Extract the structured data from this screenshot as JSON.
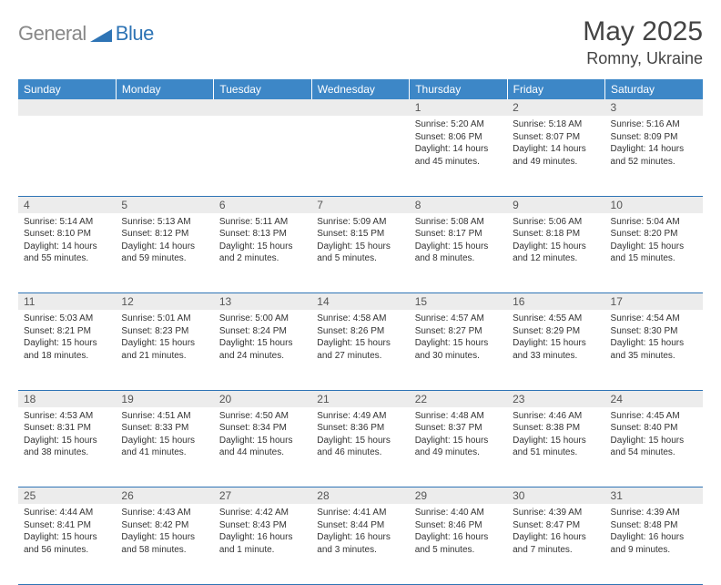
{
  "branding": {
    "word1": "General",
    "word2": "Blue",
    "word1_color": "#888888",
    "word2_color": "#2e74b5",
    "mark_color": "#2e74b5"
  },
  "title": "May 2025",
  "location": "Romny, Ukraine",
  "colors": {
    "header_bg": "#3d87c7",
    "header_text": "#ffffff",
    "daynum_bg": "#ececec",
    "daynum_text": "#555555",
    "border": "#2e74b5",
    "body_text": "#333333",
    "page_bg": "#ffffff"
  },
  "fonts": {
    "title_size": 30,
    "location_size": 18,
    "dayheader_size": 12,
    "daynum_size": 12,
    "cell_size": 10
  },
  "day_headers": [
    "Sunday",
    "Monday",
    "Tuesday",
    "Wednesday",
    "Thursday",
    "Friday",
    "Saturday"
  ],
  "weeks": [
    [
      null,
      null,
      null,
      null,
      {
        "n": "1",
        "sunrise": "Sunrise: 5:20 AM",
        "sunset": "Sunset: 8:06 PM",
        "daylight": "Daylight: 14 hours and 45 minutes."
      },
      {
        "n": "2",
        "sunrise": "Sunrise: 5:18 AM",
        "sunset": "Sunset: 8:07 PM",
        "daylight": "Daylight: 14 hours and 49 minutes."
      },
      {
        "n": "3",
        "sunrise": "Sunrise: 5:16 AM",
        "sunset": "Sunset: 8:09 PM",
        "daylight": "Daylight: 14 hours and 52 minutes."
      }
    ],
    [
      {
        "n": "4",
        "sunrise": "Sunrise: 5:14 AM",
        "sunset": "Sunset: 8:10 PM",
        "daylight": "Daylight: 14 hours and 55 minutes."
      },
      {
        "n": "5",
        "sunrise": "Sunrise: 5:13 AM",
        "sunset": "Sunset: 8:12 PM",
        "daylight": "Daylight: 14 hours and 59 minutes."
      },
      {
        "n": "6",
        "sunrise": "Sunrise: 5:11 AM",
        "sunset": "Sunset: 8:13 PM",
        "daylight": "Daylight: 15 hours and 2 minutes."
      },
      {
        "n": "7",
        "sunrise": "Sunrise: 5:09 AM",
        "sunset": "Sunset: 8:15 PM",
        "daylight": "Daylight: 15 hours and 5 minutes."
      },
      {
        "n": "8",
        "sunrise": "Sunrise: 5:08 AM",
        "sunset": "Sunset: 8:17 PM",
        "daylight": "Daylight: 15 hours and 8 minutes."
      },
      {
        "n": "9",
        "sunrise": "Sunrise: 5:06 AM",
        "sunset": "Sunset: 8:18 PM",
        "daylight": "Daylight: 15 hours and 12 minutes."
      },
      {
        "n": "10",
        "sunrise": "Sunrise: 5:04 AM",
        "sunset": "Sunset: 8:20 PM",
        "daylight": "Daylight: 15 hours and 15 minutes."
      }
    ],
    [
      {
        "n": "11",
        "sunrise": "Sunrise: 5:03 AM",
        "sunset": "Sunset: 8:21 PM",
        "daylight": "Daylight: 15 hours and 18 minutes."
      },
      {
        "n": "12",
        "sunrise": "Sunrise: 5:01 AM",
        "sunset": "Sunset: 8:23 PM",
        "daylight": "Daylight: 15 hours and 21 minutes."
      },
      {
        "n": "13",
        "sunrise": "Sunrise: 5:00 AM",
        "sunset": "Sunset: 8:24 PM",
        "daylight": "Daylight: 15 hours and 24 minutes."
      },
      {
        "n": "14",
        "sunrise": "Sunrise: 4:58 AM",
        "sunset": "Sunset: 8:26 PM",
        "daylight": "Daylight: 15 hours and 27 minutes."
      },
      {
        "n": "15",
        "sunrise": "Sunrise: 4:57 AM",
        "sunset": "Sunset: 8:27 PM",
        "daylight": "Daylight: 15 hours and 30 minutes."
      },
      {
        "n": "16",
        "sunrise": "Sunrise: 4:55 AM",
        "sunset": "Sunset: 8:29 PM",
        "daylight": "Daylight: 15 hours and 33 minutes."
      },
      {
        "n": "17",
        "sunrise": "Sunrise: 4:54 AM",
        "sunset": "Sunset: 8:30 PM",
        "daylight": "Daylight: 15 hours and 35 minutes."
      }
    ],
    [
      {
        "n": "18",
        "sunrise": "Sunrise: 4:53 AM",
        "sunset": "Sunset: 8:31 PM",
        "daylight": "Daylight: 15 hours and 38 minutes."
      },
      {
        "n": "19",
        "sunrise": "Sunrise: 4:51 AM",
        "sunset": "Sunset: 8:33 PM",
        "daylight": "Daylight: 15 hours and 41 minutes."
      },
      {
        "n": "20",
        "sunrise": "Sunrise: 4:50 AM",
        "sunset": "Sunset: 8:34 PM",
        "daylight": "Daylight: 15 hours and 44 minutes."
      },
      {
        "n": "21",
        "sunrise": "Sunrise: 4:49 AM",
        "sunset": "Sunset: 8:36 PM",
        "daylight": "Daylight: 15 hours and 46 minutes."
      },
      {
        "n": "22",
        "sunrise": "Sunrise: 4:48 AM",
        "sunset": "Sunset: 8:37 PM",
        "daylight": "Daylight: 15 hours and 49 minutes."
      },
      {
        "n": "23",
        "sunrise": "Sunrise: 4:46 AM",
        "sunset": "Sunset: 8:38 PM",
        "daylight": "Daylight: 15 hours and 51 minutes."
      },
      {
        "n": "24",
        "sunrise": "Sunrise: 4:45 AM",
        "sunset": "Sunset: 8:40 PM",
        "daylight": "Daylight: 15 hours and 54 minutes."
      }
    ],
    [
      {
        "n": "25",
        "sunrise": "Sunrise: 4:44 AM",
        "sunset": "Sunset: 8:41 PM",
        "daylight": "Daylight: 15 hours and 56 minutes."
      },
      {
        "n": "26",
        "sunrise": "Sunrise: 4:43 AM",
        "sunset": "Sunset: 8:42 PM",
        "daylight": "Daylight: 15 hours and 58 minutes."
      },
      {
        "n": "27",
        "sunrise": "Sunrise: 4:42 AM",
        "sunset": "Sunset: 8:43 PM",
        "daylight": "Daylight: 16 hours and 1 minute."
      },
      {
        "n": "28",
        "sunrise": "Sunrise: 4:41 AM",
        "sunset": "Sunset: 8:44 PM",
        "daylight": "Daylight: 16 hours and 3 minutes."
      },
      {
        "n": "29",
        "sunrise": "Sunrise: 4:40 AM",
        "sunset": "Sunset: 8:46 PM",
        "daylight": "Daylight: 16 hours and 5 minutes."
      },
      {
        "n": "30",
        "sunrise": "Sunrise: 4:39 AM",
        "sunset": "Sunset: 8:47 PM",
        "daylight": "Daylight: 16 hours and 7 minutes."
      },
      {
        "n": "31",
        "sunrise": "Sunrise: 4:39 AM",
        "sunset": "Sunset: 8:48 PM",
        "daylight": "Daylight: 16 hours and 9 minutes."
      }
    ]
  ]
}
